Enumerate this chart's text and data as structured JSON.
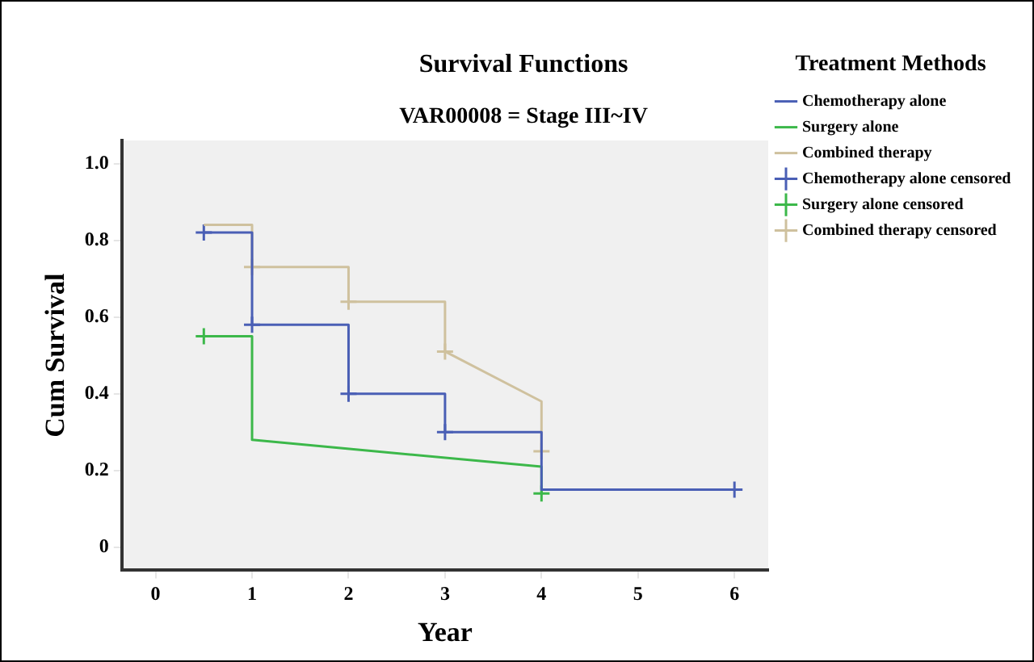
{
  "chart_data": {
    "type": "line",
    "title": "Survival Functions",
    "subtitle": "VAR00008 = Stage III~IV",
    "xlabel": "Year",
    "ylabel": "Cum Survival",
    "legend_title": "Treatment Methods",
    "xlim": [
      -0.35,
      6.35
    ],
    "xticks": [
      0,
      1,
      2,
      3,
      4,
      5,
      6
    ],
    "ylim": [
      -0.06,
      1.06
    ],
    "yticks": [
      0,
      0.2,
      0.4,
      0.6,
      0.8,
      {
        "value": 1,
        "label": "1.0"
      }
    ],
    "grid": false,
    "legend": "right",
    "marker": "none",
    "series": [
      {
        "name": "Chemotherapy alone",
        "type": "line",
        "color": "#4a5fb5",
        "x": [
          0.5,
          1,
          1,
          2,
          2,
          3,
          3,
          4,
          4,
          6
        ],
        "values": [
          0.82,
          0.82,
          0.58,
          0.58,
          0.4,
          0.4,
          0.3,
          0.3,
          0.15,
          0.15
        ]
      },
      {
        "name": "Surgery alone",
        "type": "line",
        "color": "#3cb84a",
        "x": [
          0.5,
          1,
          1,
          4,
          4
        ],
        "values": [
          0.55,
          0.55,
          0.28,
          0.21,
          0.14
        ]
      },
      {
        "name": "Combined therapy",
        "type": "line",
        "color": "#cfc19e",
        "x": [
          0.5,
          1,
          1,
          2,
          2,
          3,
          3,
          4,
          4
        ],
        "values": [
          0.84,
          0.84,
          0.73,
          0.73,
          0.64,
          0.64,
          0.51,
          0.38,
          0.25
        ]
      },
      {
        "name": "Chemotherapy alone censored",
        "type": "scatter",
        "marker": "cross",
        "color": "#4a5fb5",
        "x": [
          0.5,
          1,
          2,
          3,
          6
        ],
        "values": [
          0.82,
          0.58,
          0.4,
          0.3,
          0.15
        ]
      },
      {
        "name": "Surgery alone censored",
        "type": "scatter",
        "marker": "cross",
        "color": "#3cb84a",
        "x": [
          0.5,
          4
        ],
        "values": [
          0.55,
          0.14
        ]
      },
      {
        "name": "Combined therapy censored",
        "type": "scatter",
        "marker": "cross",
        "color": "#cfc19e",
        "x": [
          1,
          2,
          3,
          4
        ],
        "values": [
          0.73,
          0.64,
          0.51,
          0.25
        ]
      }
    ]
  }
}
